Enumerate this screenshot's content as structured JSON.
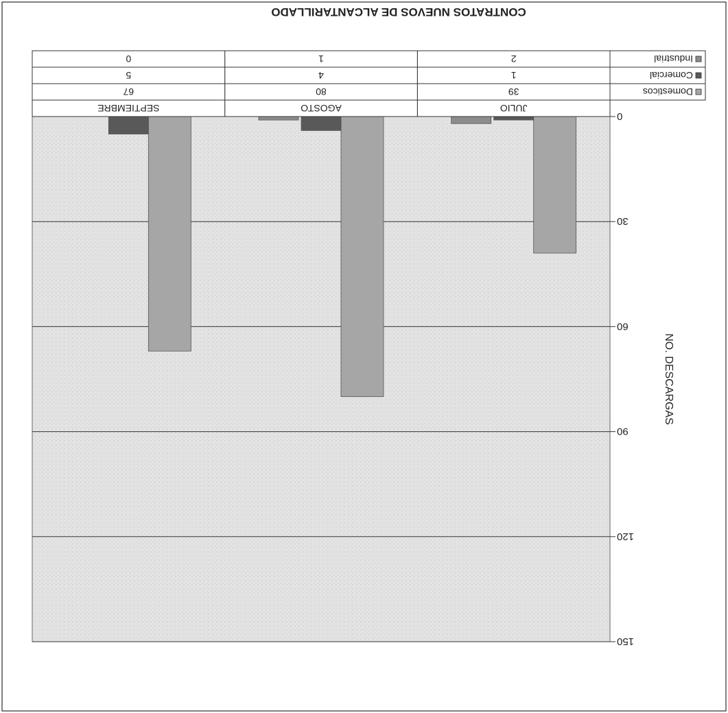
{
  "chart_data": {
    "type": "bar",
    "title": "CONTRATOS NUEVOS DE ALCANTARILLADO",
    "ylabel": "NO. DESCARGAS",
    "xlabel": "",
    "ylim": [
      0,
      150
    ],
    "y_ticks": [
      "0",
      "30",
      "60",
      "90",
      "120",
      "150"
    ],
    "categories": [
      "JULIO",
      "AGOSTO",
      "SEPTIEMBRE"
    ],
    "series": [
      {
        "name": "Domesticos",
        "values": [
          39,
          80,
          67
        ],
        "color": "#a6a6a6"
      },
      {
        "name": "Comercial",
        "values": [
          1,
          4,
          5
        ],
        "color": "#595959"
      },
      {
        "name": "Industrial",
        "values": [
          2,
          1,
          0
        ],
        "color": "#8c8c8c"
      }
    ],
    "table": {
      "rows": [
        {
          "label": "Domesticos",
          "cells": [
            "39",
            "80",
            "67"
          ]
        },
        {
          "label": "Comercial",
          "cells": [
            "1",
            "4",
            "5"
          ]
        },
        {
          "label": "Industrial",
          "cells": [
            "2",
            "1",
            "0"
          ]
        }
      ]
    },
    "grid": true,
    "legend": "data-table",
    "orientation": "rotated-180"
  }
}
